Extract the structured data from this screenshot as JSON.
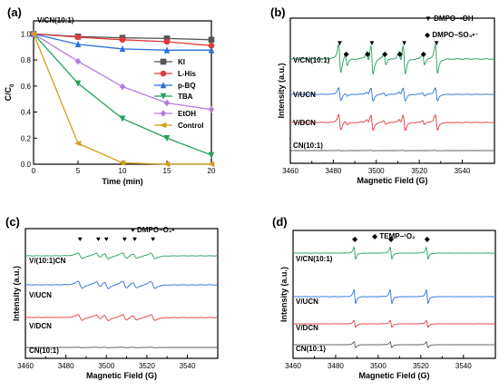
{
  "chart_data": [
    {
      "panel": "(a)",
      "type": "line",
      "annotation": "V/CN(10:1)",
      "xlabel": "Time (min)",
      "ylabel": "C/C0",
      "xlim": [
        0,
        20
      ],
      "ylim": [
        0,
        1.1
      ],
      "xticks": [
        0,
        5,
        10,
        15,
        20
      ],
      "yticks": [
        0.0,
        0.2,
        0.4,
        0.6,
        0.8,
        1.0
      ],
      "legend_position": "right",
      "x": [
        0,
        5,
        10,
        15,
        20
      ],
      "series": [
        {
          "name": "KI",
          "color": "#555555",
          "marker": "square",
          "values": [
            1.0,
            0.98,
            0.97,
            0.965,
            0.955
          ]
        },
        {
          "name": "L-His",
          "color": "#e03a3a",
          "marker": "circle",
          "values": [
            1.0,
            0.975,
            0.955,
            0.94,
            0.91
          ]
        },
        {
          "name": "p-BQ",
          "color": "#2a6fdb",
          "marker": "triangle-up",
          "values": [
            1.0,
            0.92,
            0.885,
            0.875,
            0.875
          ]
        },
        {
          "name": "TBA",
          "color": "#22a05a",
          "marker": "triangle-down",
          "values": [
            1.0,
            0.62,
            0.35,
            0.2,
            0.07
          ]
        },
        {
          "name": "EtOH",
          "color": "#b57be0",
          "marker": "diamond",
          "values": [
            1.0,
            0.79,
            0.595,
            0.47,
            0.42
          ]
        },
        {
          "name": "Control",
          "color": "#d4a017",
          "marker": "triangle-left",
          "values": [
            1.0,
            0.16,
            0.01,
            0.0,
            0.0
          ]
        }
      ]
    },
    {
      "panel": "(b)",
      "type": "line",
      "xlabel": "Magnetic Field (G)",
      "ylabel": "Intensity (a.u.)",
      "xlim": [
        3460,
        3555
      ],
      "xticks": [
        3460,
        3480,
        3500,
        3520,
        3540
      ],
      "legend": [
        {
          "symbol": "▼",
          "label": "DMPO−•OH"
        },
        {
          "symbol": "◆",
          "label": "DMPO−SO₄•⁻"
        }
      ],
      "traces": [
        {
          "name": "V/CN(10:1)",
          "color": "#22a05a"
        },
        {
          "name": "V/UCN",
          "color": "#2a6fdb"
        },
        {
          "name": "V/DCN",
          "color": "#e03a3a"
        },
        {
          "name": "CN(10:1)",
          "color": "#555555"
        }
      ],
      "oh_peaks": [
        3483,
        3498,
        3513,
        3528
      ],
      "so4_peaks": [
        3486,
        3496,
        3504,
        3511,
        3522
      ]
    },
    {
      "panel": "(c)",
      "type": "line",
      "xlabel": "Magnetic Field (G)",
      "ylabel": "Intensity (a.u.)",
      "xlim": [
        3460,
        3555
      ],
      "xticks": [
        3460,
        3480,
        3500,
        3520,
        3540
      ],
      "legend": [
        {
          "symbol": "♥",
          "label": "DMPO−O₂•⁻"
        }
      ],
      "traces": [
        {
          "name": "V/(10:1)CN",
          "color": "#22a05a"
        },
        {
          "name": "V/UCN",
          "color": "#2a6fdb"
        },
        {
          "name": "V/DCN",
          "color": "#e03a3a"
        },
        {
          "name": "CN(10:1)",
          "color": "#555555"
        }
      ],
      "peaks": [
        3487,
        3496,
        3500,
        3509,
        3514,
        3523
      ]
    },
    {
      "panel": "(d)",
      "type": "line",
      "xlabel": "Magnetic Field (G)",
      "ylabel": "Intensity (a.u.)",
      "xlim": [
        3460,
        3555
      ],
      "xticks": [
        3460,
        3480,
        3500,
        3520,
        3540
      ],
      "legend": [
        {
          "symbol": "◆",
          "label": "TEMP−¹O₂"
        }
      ],
      "traces": [
        {
          "name": "V/CN(10:1)",
          "color": "#22a05a"
        },
        {
          "name": "V/UCN",
          "color": "#2a6fdb"
        },
        {
          "name": "V/DCN",
          "color": "#e03a3a"
        },
        {
          "name": "CN(10:1)",
          "color": "#555555"
        }
      ],
      "peaks": [
        3489,
        3506,
        3523
      ]
    }
  ]
}
